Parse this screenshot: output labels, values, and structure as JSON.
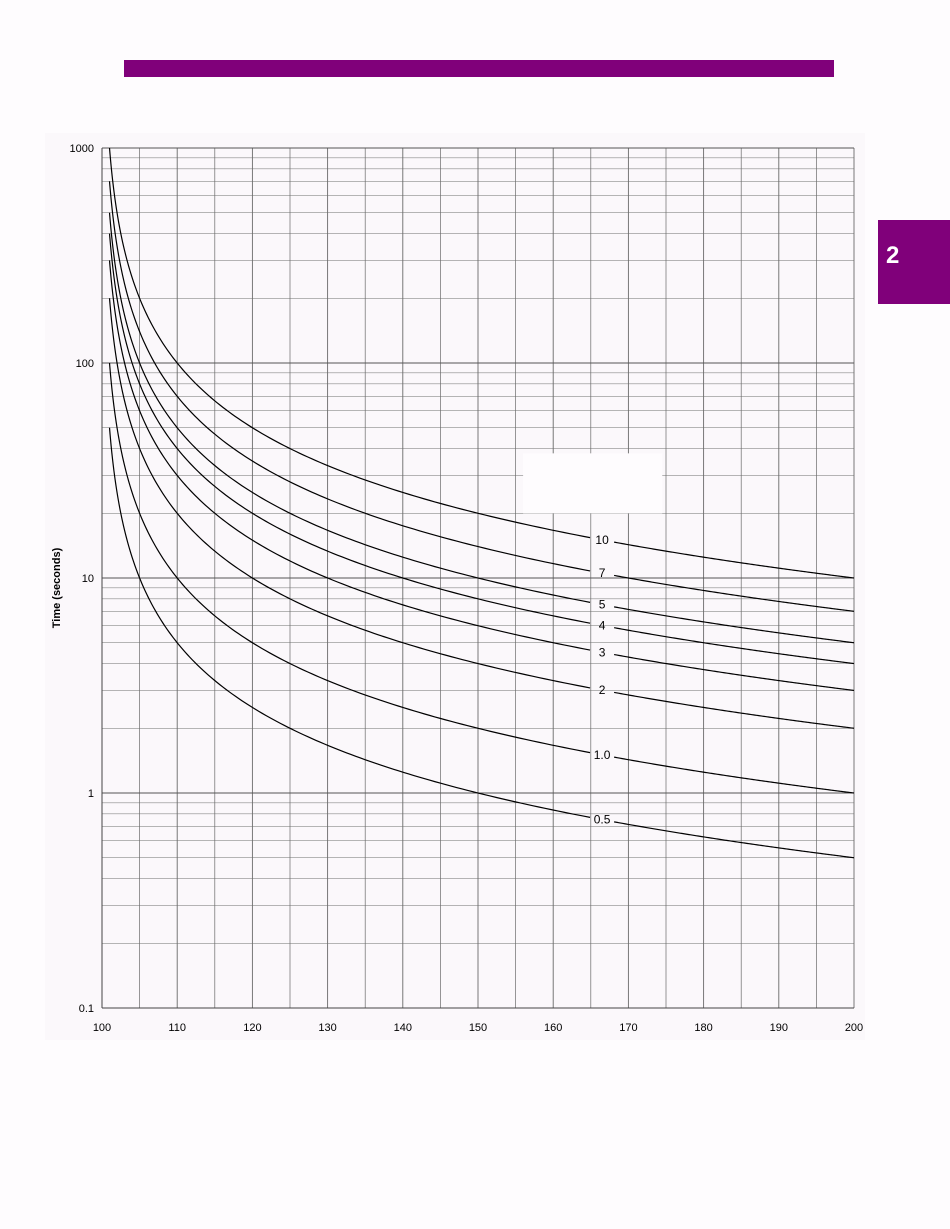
{
  "page": {
    "accent_color": "#80007a",
    "section_tab_label": "2"
  },
  "chart_data": {
    "type": "line",
    "title": "",
    "xlabel": "",
    "ylabel": "Time (seconds)",
    "xlim": [
      100,
      200
    ],
    "ylim": [
      0.1,
      1000
    ],
    "yscale": "log",
    "grid": true,
    "x_ticks": [
      100,
      110,
      120,
      130,
      140,
      150,
      160,
      170,
      180,
      190,
      200
    ],
    "x_tick_labels": [
      "100",
      "110",
      "120",
      "130",
      "140",
      "150",
      "160",
      "170",
      "180",
      "190",
      "200"
    ],
    "y_ticks": [
      0.1,
      1,
      10,
      100,
      1000
    ],
    "y_tick_labels": [
      "0.1",
      "1",
      "10",
      "100",
      "1000"
    ],
    "series": [
      {
        "name": "10",
        "label": "10",
        "label_x": 166.5,
        "label_y": 15.0,
        "x_start": 101.0,
        "values_at": [
          [
            101.0,
            1000
          ],
          [
            110,
            100
          ],
          [
            120,
            50
          ],
          [
            150,
            20
          ],
          [
            200,
            10
          ]
        ]
      },
      {
        "name": "7",
        "label": "7",
        "label_x": 166.5,
        "label_y": 10.5,
        "x_start": 101.0,
        "values_at": [
          [
            101.0,
            700
          ],
          [
            110,
            70
          ],
          [
            120,
            35
          ],
          [
            150,
            14
          ],
          [
            200,
            7
          ]
        ]
      },
      {
        "name": "5",
        "label": "5",
        "label_x": 166.5,
        "label_y": 7.5,
        "x_start": 101.0,
        "values_at": [
          [
            101.0,
            500
          ],
          [
            110,
            50
          ],
          [
            120,
            25
          ],
          [
            150,
            10
          ],
          [
            200,
            5
          ]
        ]
      },
      {
        "name": "4",
        "label": "4",
        "label_x": 166.5,
        "label_y": 6.0,
        "x_start": 101.0,
        "values_at": [
          [
            101.0,
            400
          ],
          [
            110,
            40
          ],
          [
            120,
            20
          ],
          [
            150,
            8
          ],
          [
            200,
            4
          ]
        ]
      },
      {
        "name": "3",
        "label": "3",
        "label_x": 166.5,
        "label_y": 4.4,
        "x_start": 101.0,
        "values_at": [
          [
            101.0,
            300
          ],
          [
            110,
            30
          ],
          [
            120,
            15
          ],
          [
            150,
            6
          ],
          [
            200,
            3
          ]
        ]
      },
      {
        "name": "2",
        "label": "2",
        "label_x": 166.5,
        "label_y": 3.0,
        "x_start": 101.0,
        "values_at": [
          [
            101.0,
            200
          ],
          [
            110,
            20
          ],
          [
            120,
            10
          ],
          [
            150,
            4
          ],
          [
            200,
            2
          ]
        ]
      },
      {
        "name": "1.0",
        "label": "1.0",
        "label_x": 166.5,
        "label_y": 1.5,
        "x_start": 101.0,
        "values_at": [
          [
            101.0,
            100
          ],
          [
            110,
            10
          ],
          [
            120,
            5
          ],
          [
            150,
            2
          ],
          [
            200,
            1
          ]
        ]
      },
      {
        "name": "0.5",
        "label": "0.5",
        "label_x": 166.5,
        "label_y": 0.75,
        "x_start": 101.0,
        "values_at": [
          [
            101.0,
            50
          ],
          [
            110,
            5
          ],
          [
            120,
            2.5
          ],
          [
            150,
            1
          ],
          [
            200,
            0.5
          ]
        ]
      }
    ]
  }
}
